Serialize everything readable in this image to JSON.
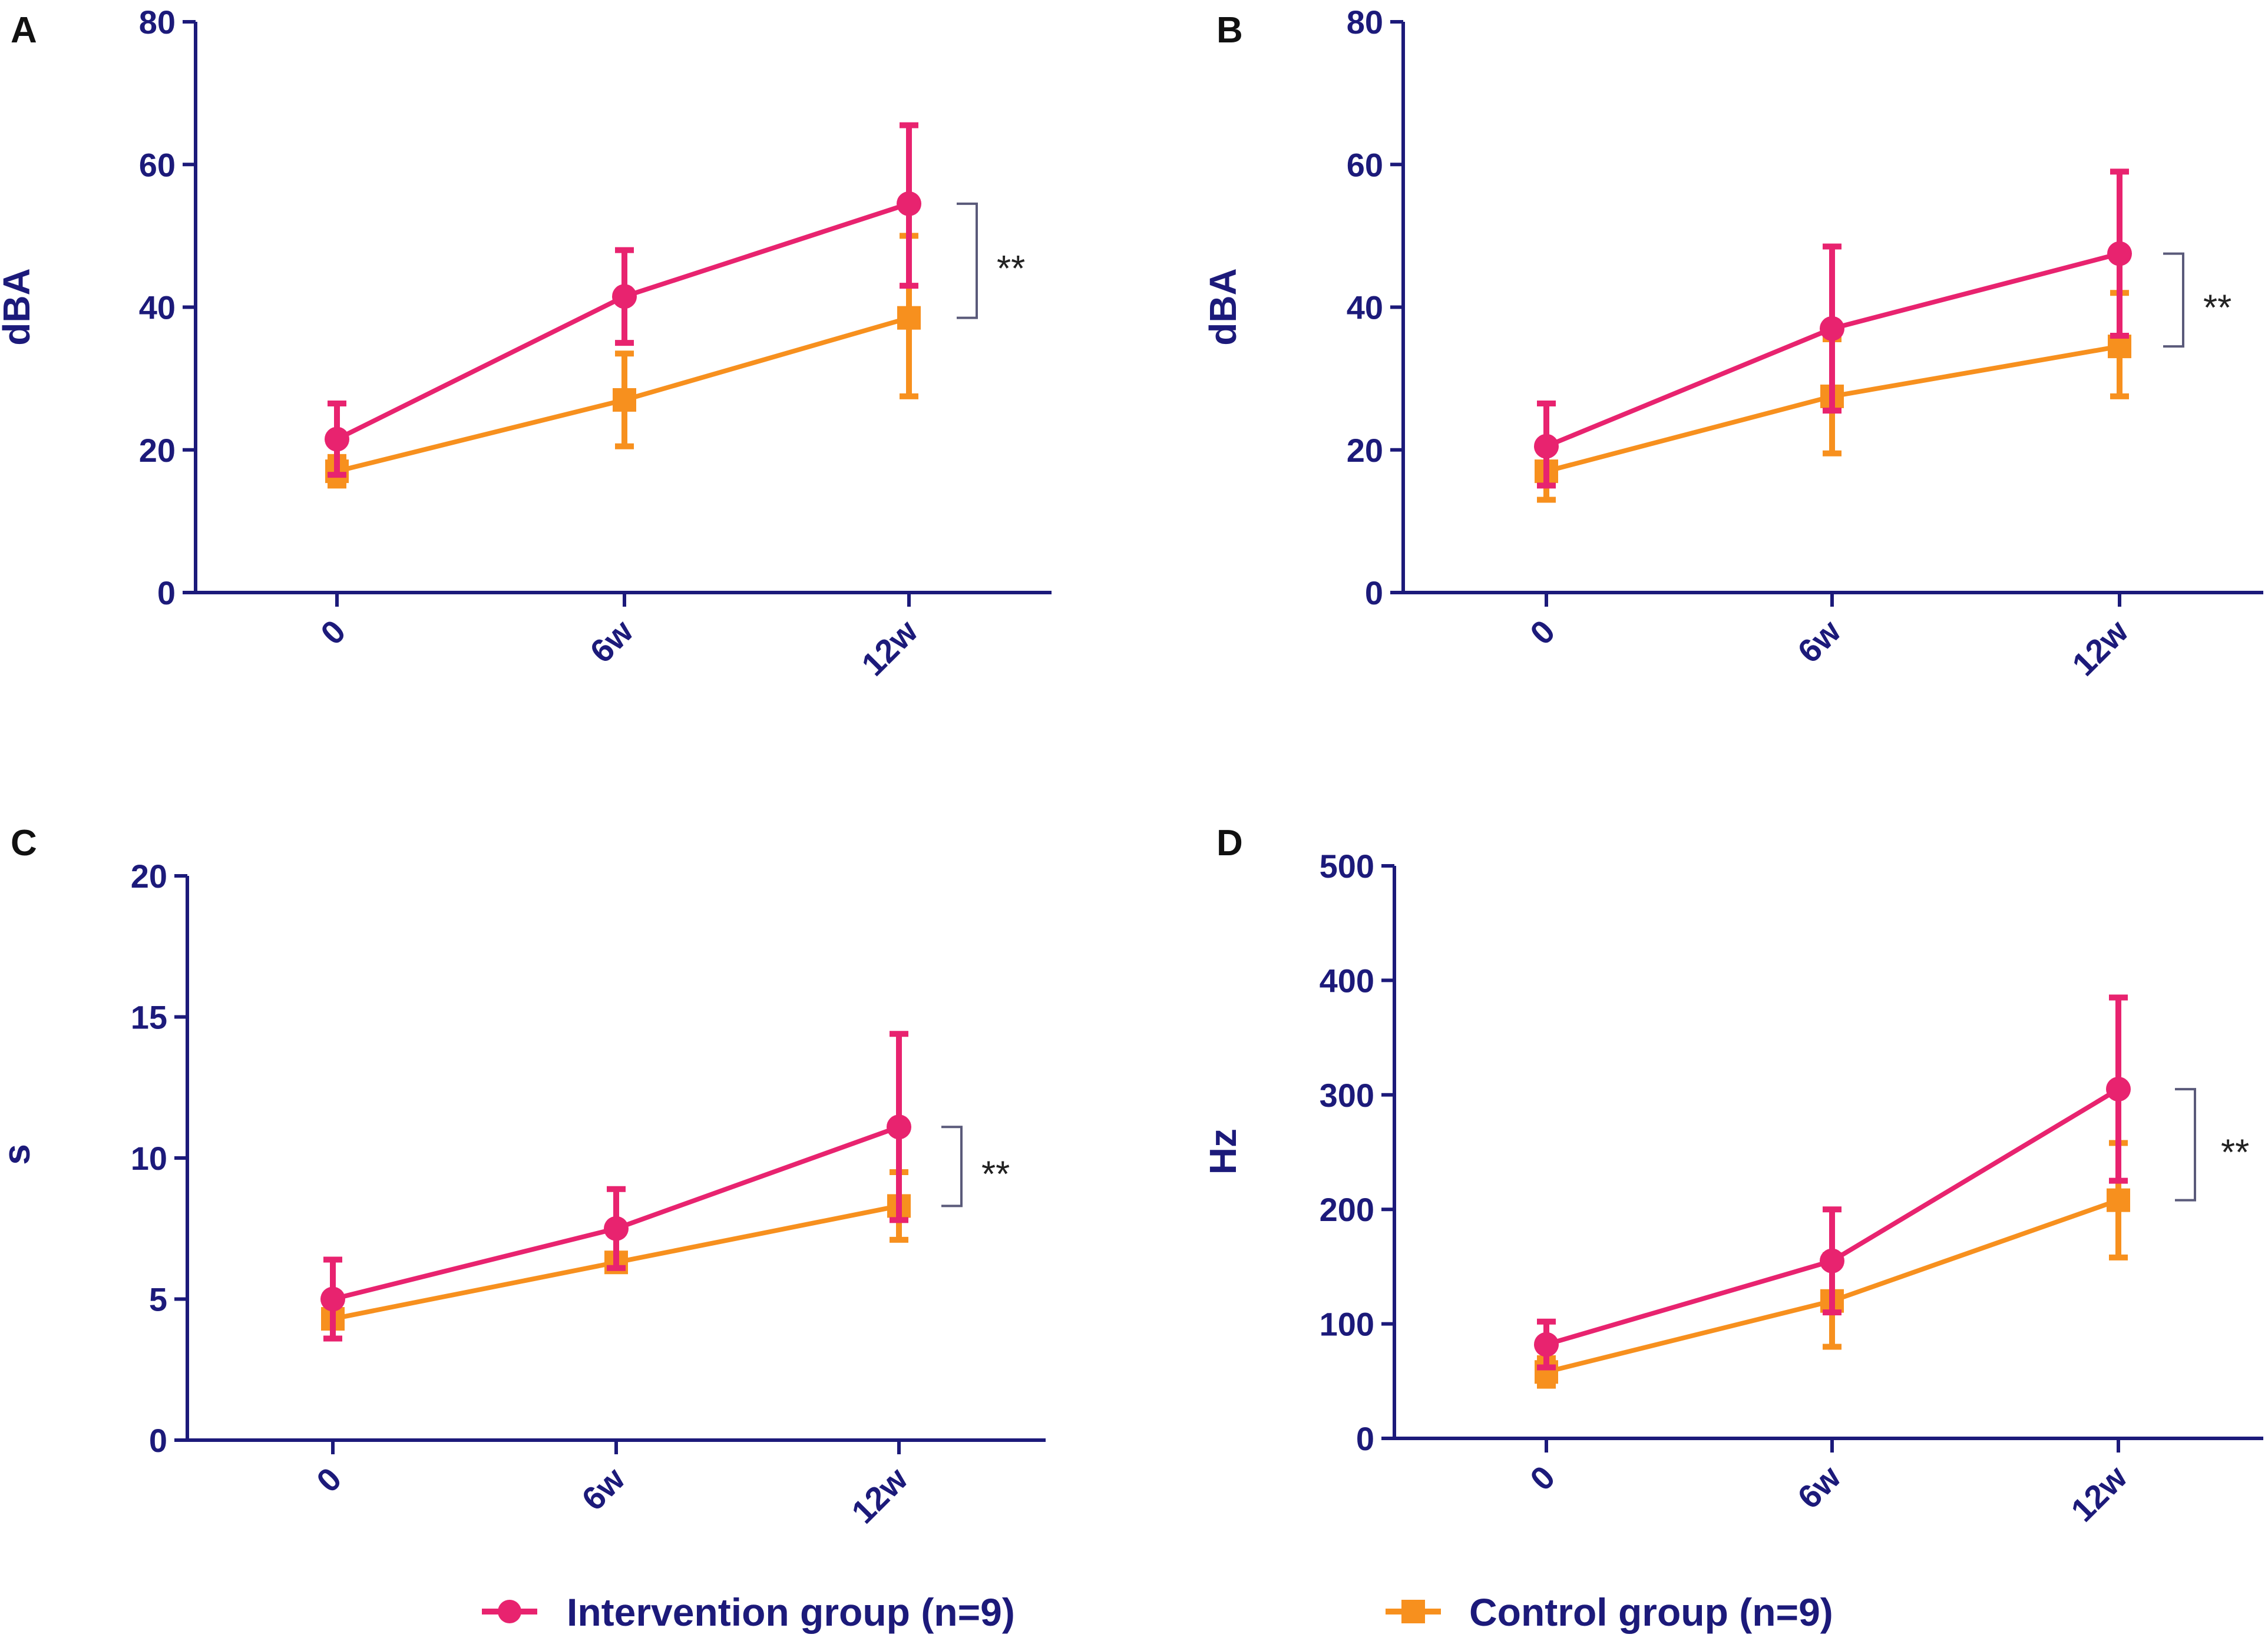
{
  "colors": {
    "axis": "#1c1a7a",
    "intervention": "#e8236f",
    "control": "#f7901e",
    "bracket": "#5a5a7a"
  },
  "legend": {
    "intervention_label": "Intervention group (n=9)",
    "control_label": "Control group (n=9)"
  },
  "chart_data": [
    {
      "panel": "A",
      "type": "line",
      "categories": [
        "0",
        "6w",
        "12w"
      ],
      "ylabel": "dBA",
      "ylim": [
        0,
        80
      ],
      "yticks": [
        0,
        20,
        40,
        60,
        80
      ],
      "significance": "**",
      "series": [
        {
          "name": "Intervention group (n=9)",
          "values": [
            21.5,
            41.5,
            54.5
          ],
          "err_low": [
            16.5,
            35,
            43
          ],
          "err_high": [
            26.5,
            48,
            65.5
          ]
        },
        {
          "name": "Control group (n=9)",
          "values": [
            17,
            27,
            38.5
          ],
          "err_low": [
            15,
            20.5,
            27.5
          ],
          "err_high": [
            19,
            33.5,
            50
          ]
        }
      ]
    },
    {
      "panel": "B",
      "type": "line",
      "categories": [
        "0",
        "6w",
        "12w"
      ],
      "ylabel": "dBA",
      "ylim": [
        0,
        80
      ],
      "yticks": [
        0,
        20,
        40,
        60,
        80
      ],
      "significance": "**",
      "series": [
        {
          "name": "Intervention group (n=9)",
          "values": [
            20.5,
            37,
            47.5
          ],
          "err_low": [
            15,
            25.5,
            36
          ],
          "err_high": [
            26.5,
            48.5,
            59
          ]
        },
        {
          "name": "Control group (n=9)",
          "values": [
            17,
            27.5,
            34.5
          ],
          "err_low": [
            13,
            19.5,
            27.5
          ],
          "err_high": [
            21,
            35.5,
            42
          ]
        }
      ]
    },
    {
      "panel": "C",
      "type": "line",
      "categories": [
        "0",
        "6w",
        "12w"
      ],
      "ylabel": "s",
      "ylim": [
        0,
        20
      ],
      "yticks": [
        0,
        5,
        10,
        15,
        20
      ],
      "significance": "**",
      "series": [
        {
          "name": "Intervention group (n=9)",
          "values": [
            5,
            7.5,
            11.1
          ],
          "err_low": [
            3.6,
            6.1,
            7.8
          ],
          "err_high": [
            6.4,
            8.9,
            14.4
          ]
        },
        {
          "name": "Control group (n=9)",
          "values": [
            4.3,
            6.3,
            8.3
          ],
          "err_low": [
            3.6,
            6,
            7.1
          ],
          "err_high": [
            5,
            6.6,
            9.5
          ]
        }
      ]
    },
    {
      "panel": "D",
      "type": "line",
      "categories": [
        "0",
        "6w",
        "12w"
      ],
      "ylabel": "Hz",
      "ylim": [
        0,
        500
      ],
      "yticks": [
        0,
        100,
        200,
        300,
        400,
        500
      ],
      "significance": "**",
      "series": [
        {
          "name": "Intervention group (n=9)",
          "values": [
            82,
            155,
            305
          ],
          "err_low": [
            62,
            110,
            225
          ],
          "err_high": [
            102,
            200,
            385
          ]
        },
        {
          "name": "Control group (n=9)",
          "values": [
            58,
            120,
            208
          ],
          "err_low": [
            46,
            80,
            158
          ],
          "err_high": [
            70,
            160,
            258
          ]
        }
      ]
    }
  ]
}
